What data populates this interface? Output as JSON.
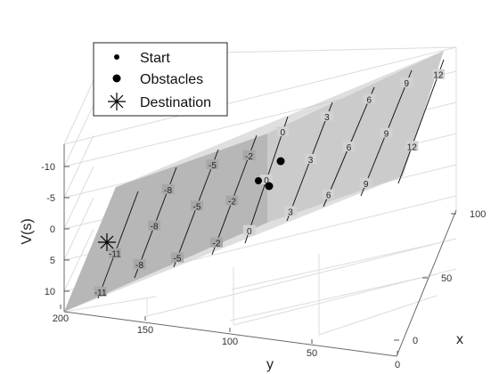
{
  "chart_data": {
    "type": "surface",
    "xlabel": "x",
    "ylabel": "y",
    "zlabel": "V(s)",
    "xlim": [
      0,
      100
    ],
    "ylim": [
      0,
      200
    ],
    "zlim": [
      -14,
      13
    ],
    "x_ticks": [
      "0",
      "50",
      "100"
    ],
    "y_ticks": [
      "0",
      "50",
      "100",
      "150",
      "200"
    ],
    "z_ticks": [
      "-10",
      "-5",
      "0",
      "5",
      "10"
    ],
    "grid": true,
    "legend_position": "top-left",
    "legend": [
      {
        "name": "Start",
        "marker": "small-dot"
      },
      {
        "name": "Obstacles",
        "marker": "large-dot"
      },
      {
        "name": "Destination",
        "marker": "asterisk"
      }
    ],
    "plane": {
      "corners_xyv": [
        [
          0,
          200,
          -14
        ],
        [
          100,
          200,
          -2
        ],
        [
          100,
          0,
          13
        ],
        [
          0,
          0,
          1
        ]
      ],
      "color": "#c8c8c8"
    },
    "contours": [
      {
        "level": -11,
        "labels": [
          "-11",
          "-11"
        ]
      },
      {
        "level": -8,
        "labels": [
          "-8",
          "-8",
          "-8"
        ]
      },
      {
        "level": -5,
        "labels": [
          "-5",
          "-5",
          "-5"
        ]
      },
      {
        "level": -2,
        "labels": [
          "-2",
          "-2",
          "-2"
        ]
      },
      {
        "level": 0,
        "labels": [
          "0",
          "0",
          "0"
        ]
      },
      {
        "level": 3,
        "labels": [
          "3",
          "3",
          "3"
        ]
      },
      {
        "level": 6,
        "labels": [
          "6",
          "6",
          "6"
        ]
      },
      {
        "level": 9,
        "labels": [
          "9",
          "9",
          "9"
        ]
      },
      {
        "level": 12,
        "labels": [
          "12",
          "12"
        ]
      }
    ],
    "points": [
      {
        "role": "Start",
        "x": 30,
        "y": 95,
        "v": 0
      },
      {
        "role": "Obstacles",
        "x": 25,
        "y": 80,
        "v": 0
      },
      {
        "role": "Obstacles",
        "x": 50,
        "y": 80,
        "v": 2
      },
      {
        "role": "Destination",
        "x": 60,
        "y": 195,
        "v": -3
      }
    ]
  }
}
